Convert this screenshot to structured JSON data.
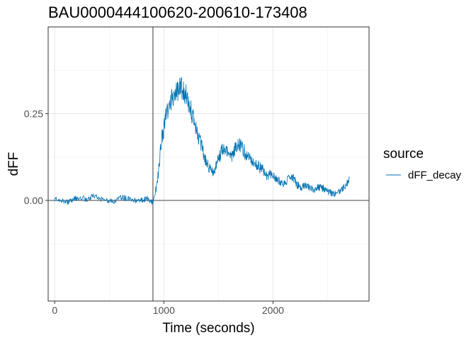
{
  "chart_data": {
    "type": "line",
    "title": "BAU0000444100620-200610-173408",
    "xlabel": "Time (seconds)",
    "ylabel": "dFF",
    "xlim": [
      -60,
      2880
    ],
    "ylim": [
      -0.29,
      0.5
    ],
    "x_ticks": [
      0,
      1000,
      2000
    ],
    "x_tick_labels": [
      "0",
      "1000",
      "2000"
    ],
    "y_ticks": [
      0.0,
      0.25
    ],
    "y_tick_labels": [
      "0.00",
      "0.25"
    ],
    "x_minor_gridlines": [
      500,
      1500,
      2500
    ],
    "y_minor_gridlines": [
      -0.125,
      0.125,
      0.375
    ],
    "grid": true,
    "reference_lines": {
      "vertical_x": 900,
      "horizontal_y": 0
    },
    "legend": {
      "title": "source",
      "position": "right"
    },
    "series": [
      {
        "name": "dFF_decay",
        "color": "#0072B2",
        "x": [
          0,
          60,
          120,
          180,
          240,
          300,
          360,
          420,
          480,
          540,
          600,
          660,
          720,
          780,
          840,
          900,
          940,
          980,
          1020,
          1060,
          1100,
          1140,
          1180,
          1220,
          1260,
          1300,
          1340,
          1380,
          1420,
          1460,
          1500,
          1540,
          1580,
          1620,
          1660,
          1700,
          1740,
          1780,
          1820,
          1860,
          1900,
          1940,
          1980,
          2020,
          2060,
          2100,
          2140,
          2180,
          2220,
          2260,
          2300,
          2340,
          2380,
          2420,
          2460,
          2500,
          2540,
          2580,
          2620,
          2660,
          2700
        ],
        "y": [
          0.005,
          0.0,
          -0.005,
          0.005,
          0.01,
          0.0,
          0.015,
          0.005,
          0.0,
          -0.005,
          0.01,
          0.005,
          0.0,
          0.0,
          0.005,
          -0.005,
          0.05,
          0.18,
          0.24,
          0.28,
          0.31,
          0.33,
          0.32,
          0.29,
          0.25,
          0.2,
          0.16,
          0.12,
          0.09,
          0.08,
          0.12,
          0.15,
          0.14,
          0.13,
          0.15,
          0.16,
          0.14,
          0.12,
          0.11,
          0.1,
          0.09,
          0.07,
          0.075,
          0.065,
          0.055,
          0.05,
          0.06,
          0.065,
          0.045,
          0.04,
          0.04,
          0.035,
          0.03,
          0.04,
          0.035,
          0.025,
          0.02,
          0.02,
          0.03,
          0.04,
          0.065
        ]
      }
    ]
  }
}
